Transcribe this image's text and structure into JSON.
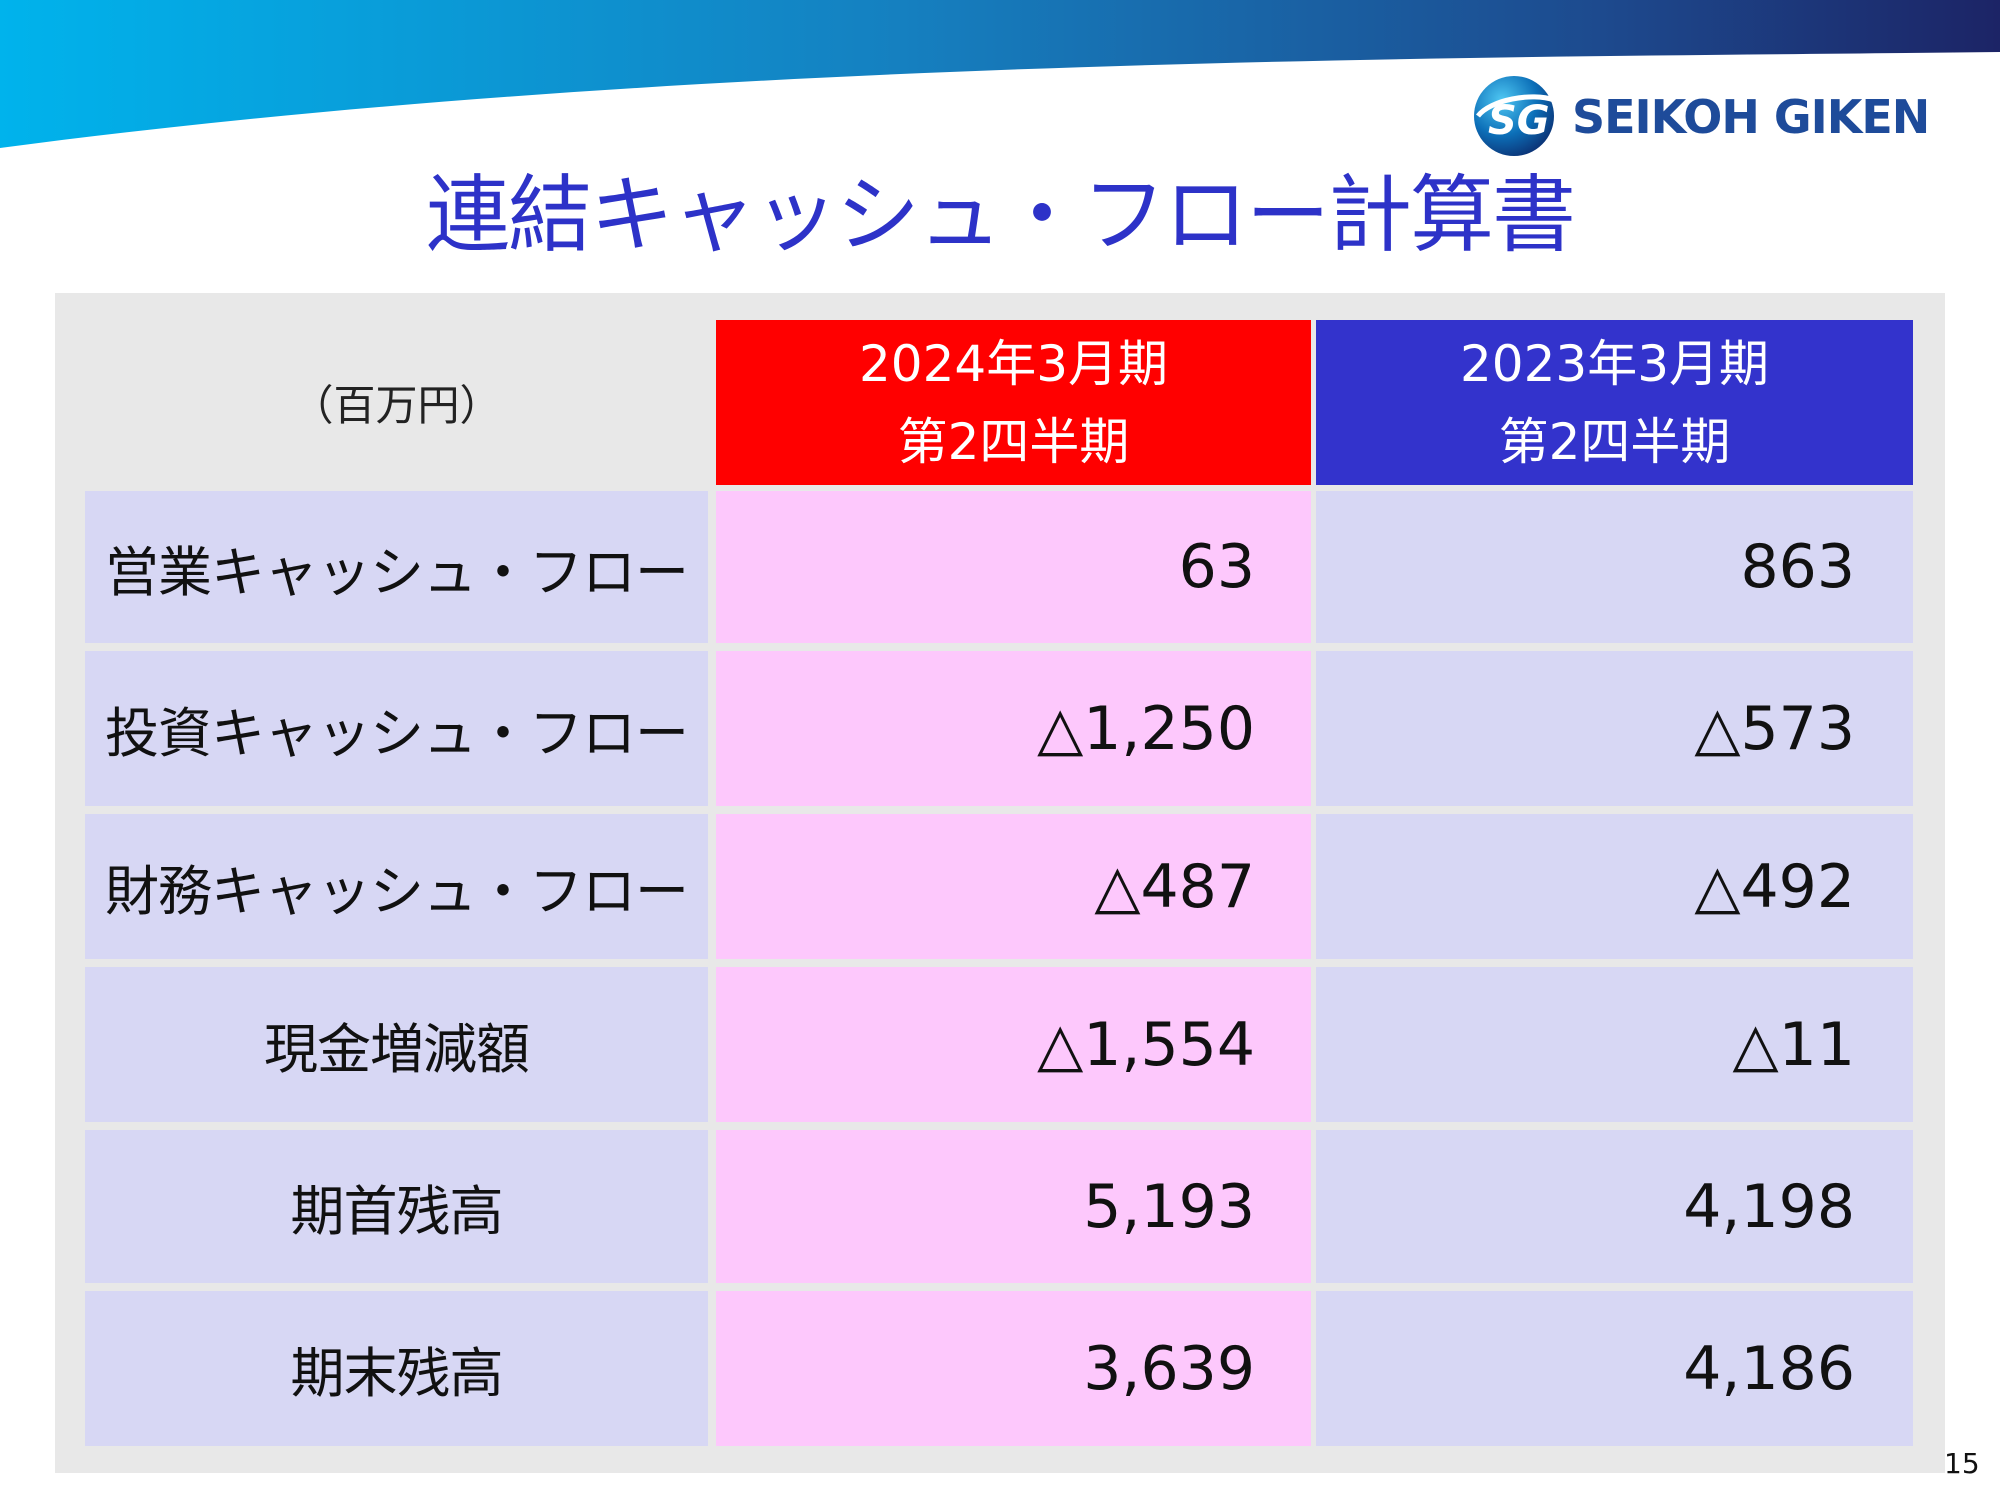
{
  "header": {
    "logo_text": "SEIKOH GIKEN",
    "logo_mark_text": "SG",
    "colors": {
      "band_light": "#00b0ea",
      "band_dark": "#1c2a6e",
      "logo_text": "#1e4b9a"
    }
  },
  "title": "連結キャッシュ・フロー計算書",
  "table": {
    "unit": "（百万円）",
    "columns": [
      {
        "line1": "2024年3月期",
        "line2": "第2四半期",
        "color": "#ff0000"
      },
      {
        "line1": "2023年3月期",
        "line2": "第2四半期",
        "color": "#3333cc"
      }
    ],
    "rows": [
      {
        "label": "営業キャッシュ・フロー",
        "current": "63",
        "previous": "863"
      },
      {
        "label": "投資キャッシュ・フロー",
        "current": "△1,250",
        "previous": "△573"
      },
      {
        "label": "財務キャッシュ・フロー",
        "current": "△487",
        "previous": "△492"
      },
      {
        "label": "現金増減額",
        "current": "△1,554",
        "previous": "△11"
      },
      {
        "label": "期首残高",
        "current": "5,193",
        "previous": "4,198"
      },
      {
        "label": "期末残高",
        "current": "3,639",
        "previous": "4,186"
      }
    ]
  },
  "page_number": "15"
}
